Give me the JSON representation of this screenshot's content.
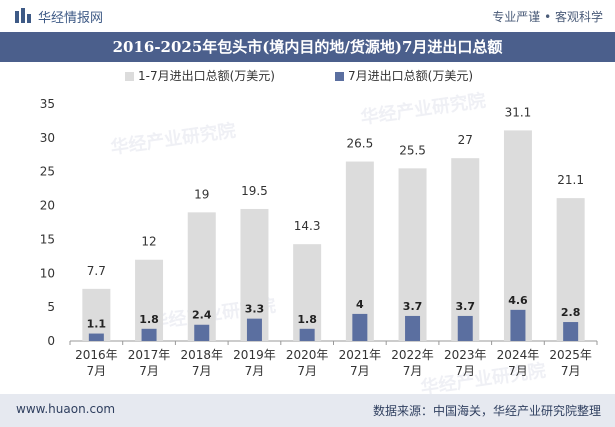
{
  "header": {
    "brand": "华经情报网",
    "slogan": "专业严谨 • 客观科学"
  },
  "footer": {
    "site": "www.huaon.com",
    "source": "数据来源：中国海关，华经产业研究院整理"
  },
  "watermark": "华经产业研究院",
  "colors": {
    "header_bar": "#4b5f8c",
    "series_total": "#dcdcdc",
    "series_july": "#5b6fa0",
    "footer_bar": "#e6e9f0"
  },
  "chart_data": {
    "type": "bar",
    "title": "2016-2025年包头市(境内目的地/货源地)7月进出口总额",
    "categories": [
      [
        "2016年",
        "7月"
      ],
      [
        "2017年",
        "7月"
      ],
      [
        "2018年",
        "7月"
      ],
      [
        "2019年",
        "7月"
      ],
      [
        "2020年",
        "7月"
      ],
      [
        "2021年",
        "7月"
      ],
      [
        "2022年",
        "7月"
      ],
      [
        "2023年",
        "7月"
      ],
      [
        "2024年",
        "7月"
      ],
      [
        "2025年",
        "7月"
      ]
    ],
    "series": [
      {
        "name": "1-7月进出口总额(万美元)",
        "color": "#dcdcdc",
        "values": [
          7.7,
          12,
          19,
          19.5,
          14.3,
          26.5,
          25.5,
          27,
          31.1,
          21.1
        ],
        "labels": [
          "7.7",
          "12",
          "19",
          "19.5",
          "14.3",
          "26.5",
          "25.5",
          "27",
          "31.1",
          "21.1"
        ]
      },
      {
        "name": "7月进出口总额(万美元)",
        "color": "#5b6fa0",
        "values": [
          1.1,
          1.8,
          2.4,
          3.3,
          1.8,
          4,
          3.7,
          3.7,
          4.6,
          2.8
        ],
        "labels": [
          "1.1",
          "1.8",
          "2.4",
          "3.3",
          "1.8",
          "4",
          "3.7",
          "3.7",
          "4.6",
          "2.8"
        ]
      }
    ],
    "yticks": [
      "0",
      "5",
      "10",
      "15",
      "20",
      "25",
      "30",
      "35"
    ],
    "ylim": [
      0,
      35
    ],
    "legend_position": "top-center",
    "grid": false
  }
}
